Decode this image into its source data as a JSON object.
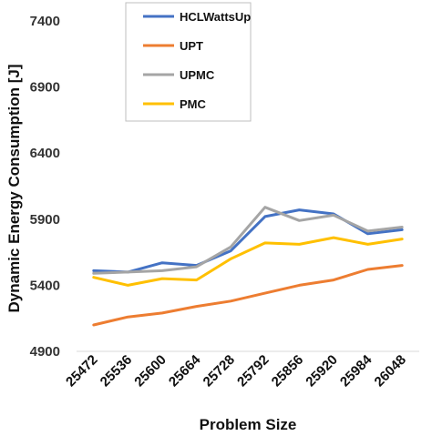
{
  "chart_data": {
    "type": "line",
    "title": "",
    "xlabel": "Problem Size",
    "ylabel": "Dynamic Energy Consumption [J]",
    "categories": [
      "25472",
      "25536",
      "25600",
      "25664",
      "25728",
      "25792",
      "25856",
      "25920",
      "25984",
      "26048"
    ],
    "ylim": [
      4900,
      7400
    ],
    "yticks": [
      4900,
      5400,
      5900,
      6400,
      6900,
      7400
    ],
    "grid": false,
    "legend_position": "top-center",
    "series": [
      {
        "name": "HCLWattsUp",
        "color": "#4472C4",
        "values": [
          5510,
          5500,
          5570,
          5550,
          5660,
          5920,
          5970,
          5940,
          5790,
          5820
        ]
      },
      {
        "name": "UPT",
        "color": "#ED7D31",
        "values": [
          5100,
          5160,
          5190,
          5240,
          5280,
          5340,
          5400,
          5440,
          5520,
          5550
        ]
      },
      {
        "name": "UPMC",
        "color": "#A5A5A5",
        "values": [
          5490,
          5500,
          5510,
          5540,
          5690,
          5990,
          5890,
          5930,
          5810,
          5840
        ]
      },
      {
        "name": "PMC",
        "color": "#FFC000",
        "values": [
          5460,
          5400,
          5450,
          5440,
          5600,
          5720,
          5710,
          5760,
          5710,
          5750
        ]
      }
    ]
  }
}
